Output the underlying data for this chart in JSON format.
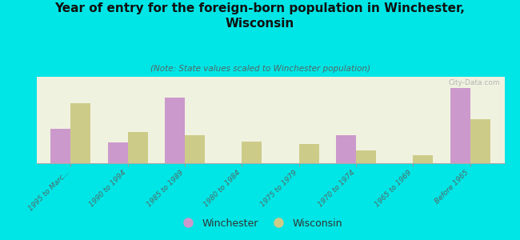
{
  "title": "Year of entry for the foreign-born population in Winchester,\nWisconsin",
  "subtitle": "(Note: State values scaled to Winchester population)",
  "categories": [
    "1995 to Marc...",
    "1990 to 1994",
    "1985 to 1989",
    "1980 to 1984",
    "1975 to 1979",
    "1970 to 1974",
    "1965 to 1969",
    "Before 1965"
  ],
  "winchester_values": [
    22,
    13,
    42,
    0,
    0,
    18,
    0,
    48
  ],
  "wisconsin_values": [
    38,
    20,
    18,
    14,
    12,
    8,
    5,
    28
  ],
  "winchester_color": "#cc99cc",
  "wisconsin_color": "#cccc88",
  "background_color": "#00e5e5",
  "watermark": "City-Data.com",
  "bar_width": 0.35,
  "ylim": [
    0,
    55
  ],
  "legend_labels": [
    "Winchester",
    "Wisconsin"
  ]
}
